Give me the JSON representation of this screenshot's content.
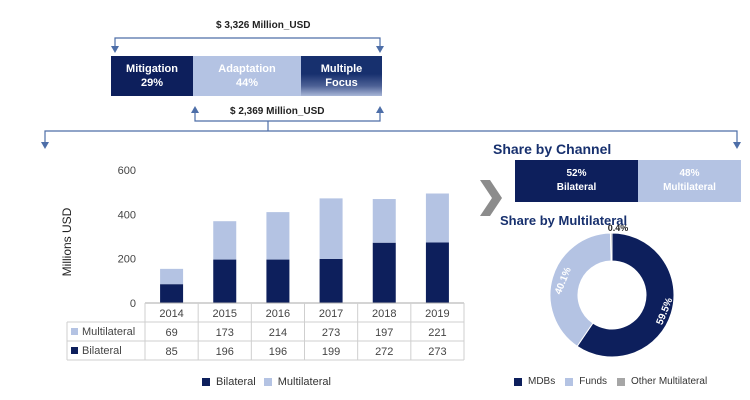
{
  "colors": {
    "bilateral": "#0d1f5c",
    "multilateral": "#b4c3e3",
    "mdbs": "#0d1f5c",
    "funds": "#b4c3e3",
    "other": "#a6a6a6",
    "arrow": "#4d6ea8",
    "chevron": "#8c8c8c"
  },
  "top_breakdown": {
    "total_amount": "$ 3,326 Million_USD",
    "sub_amount": "$ 2,369 Million_USD",
    "segments": [
      {
        "label": "Mitigation",
        "value": "29%"
      },
      {
        "label": "Adaptation",
        "value": "44%"
      },
      {
        "label": "Multiple",
        "value": "Focus"
      }
    ]
  },
  "channel": {
    "title": "Share by Channel",
    "items": [
      {
        "value": "52%",
        "label": "Bilateral"
      },
      {
        "value": "48%",
        "label": "Multilateral"
      }
    ]
  },
  "chart_data": [
    {
      "type": "bar",
      "stacked": true,
      "categories": [
        "2014",
        "2015",
        "2016",
        "2017",
        "2018",
        "2019"
      ],
      "series": [
        {
          "name": "Bilateral",
          "values": [
            85,
            196,
            196,
            199,
            272,
            273
          ]
        },
        {
          "name": "Multilateral",
          "values": [
            69,
            173,
            214,
            273,
            197,
            221
          ]
        }
      ],
      "ylabel": "Millions USD",
      "ylim": [
        0,
        600
      ],
      "yticks": [
        "0",
        "200",
        "400",
        "600"
      ],
      "data_table": true,
      "grid": false,
      "legend": "bottom"
    },
    {
      "type": "pie",
      "donut": true,
      "title": "Share by Multilateral",
      "slices": [
        {
          "name": "MDBs",
          "value": 59.5,
          "label": "59.5%"
        },
        {
          "name": "Funds",
          "value": 40.1,
          "label": "40.1%"
        },
        {
          "name": "Other Multilateral",
          "value": 0.4,
          "label": "0.4%"
        }
      ],
      "legend": "bottom"
    }
  ]
}
